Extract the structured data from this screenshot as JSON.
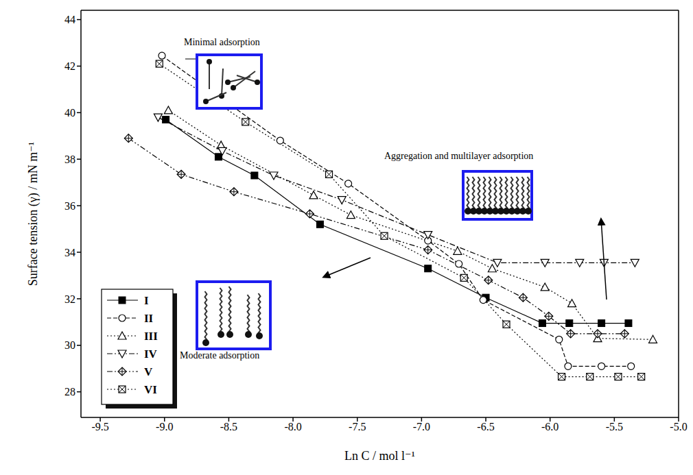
{
  "chart_data": {
    "type": "line",
    "x_label": "Ln C / mol l⁻¹",
    "y_label": "Surface tension (γ) / mN m⁻¹",
    "xlim": [
      -9.65,
      -5.0
    ],
    "ylim": [
      26.9,
      44.4
    ],
    "xticks": [
      -9.5,
      {
        "value": -9,
        "label": "-9.0"
      },
      -8.5,
      {
        "value": -8,
        "label": "-8.0"
      },
      -7.5,
      {
        "value": -7,
        "label": "-7.0"
      },
      -6.5,
      {
        "value": -6,
        "label": "-6.0"
      },
      -5.5,
      {
        "value": -5,
        "label": "-5.0"
      }
    ],
    "yticks": [
      28,
      30,
      32,
      34,
      36,
      38,
      40,
      42,
      44
    ],
    "grid": false,
    "legend": "lower left",
    "annotations": [
      {
        "text": "Minimal adsorption"
      },
      {
        "text": "Aggregation and multilayer adsorption"
      },
      {
        "text": "Moderate adsorption"
      }
    ],
    "series": [
      {
        "name": "I",
        "color": "#000000",
        "marker": "square-filled",
        "line_style": "solid",
        "x": [
          -8.99,
          -8.58,
          -8.3,
          -7.79,
          -6.95,
          -6.5,
          -6.06,
          -5.85,
          -5.6,
          -5.39
        ],
        "values": [
          39.7,
          38.1,
          37.3,
          35.2,
          33.3,
          32.05,
          30.95,
          30.95,
          30.95,
          30.95
        ]
      },
      {
        "name": "II",
        "color": "#000000",
        "marker": "circle-open",
        "line_style": "dashed",
        "x": [
          -9.02,
          -8.1,
          -7.57,
          -6.95,
          -6.71,
          -6.52,
          -5.93,
          -5.86,
          -5.6,
          -5.37
        ],
        "values": [
          42.45,
          38.8,
          36.95,
          34.5,
          33.5,
          31.95,
          30.25,
          29.1,
          29.1,
          29.1
        ]
      },
      {
        "name": "III",
        "color": "#000000",
        "marker": "triangle-open",
        "line_style": "dotted",
        "x": [
          -8.97,
          -8.56,
          -7.84,
          -7.55,
          -6.72,
          -6.45,
          -6.04,
          -5.83,
          -5.63,
          -5.2
        ],
        "values": [
          40.1,
          38.6,
          36.45,
          35.6,
          34.05,
          33.3,
          32.5,
          31.8,
          30.3,
          30.25
        ]
      },
      {
        "name": "IV",
        "color": "#000000",
        "marker": "triangle-down-open",
        "line_style": "dashdot",
        "x": [
          -9.05,
          -8.55,
          -8.15,
          -7.62,
          -6.95,
          -6.41,
          -6.04,
          -5.77,
          -5.58,
          -5.34
        ],
        "values": [
          39.8,
          38.35,
          37.3,
          36.25,
          34.75,
          33.55,
          33.55,
          33.55,
          33.55,
          33.55
        ]
      },
      {
        "name": "V",
        "color": "#000000",
        "marker": "diamond-cross",
        "line_style": "dashdotdot",
        "x": [
          -9.28,
          -8.87,
          -8.46,
          -7.87,
          -6.95,
          -6.48,
          -6.21,
          -6.01,
          -5.84,
          -5.63,
          -5.42
        ],
        "values": [
          38.9,
          37.35,
          36.6,
          35.65,
          34.1,
          32.8,
          32.05,
          31.25,
          30.5,
          30.5,
          30.5
        ]
      },
      {
        "name": "VI",
        "color": "#000000",
        "marker": "x-box",
        "line_style": "dotted",
        "x": [
          -9.04,
          -8.37,
          -7.72,
          -7.29,
          -6.67,
          -6.34,
          -5.91,
          -5.69,
          -5.47,
          -5.29
        ],
        "values": [
          42.1,
          39.6,
          37.35,
          34.7,
          32.9,
          30.9,
          28.65,
          28.65,
          28.65,
          28.65
        ]
      }
    ]
  }
}
